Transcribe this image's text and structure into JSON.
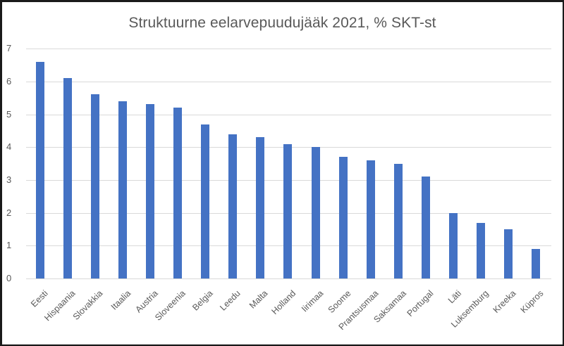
{
  "chart_data": {
    "type": "bar",
    "title": "Struktuurne eelarvepuudujääk 2021, % SKT-st",
    "xlabel": "",
    "ylabel": "",
    "ylim": [
      0,
      7
    ],
    "yticks": [
      0,
      1,
      2,
      3,
      4,
      5,
      6,
      7
    ],
    "grid": true,
    "legend": null,
    "bar_color": "#4472c4",
    "categories": [
      "Eesti",
      "Hispaania",
      "Slovakkia",
      "Itaalia",
      "Austria",
      "Sloveenia",
      "Belgia",
      "Leedu",
      "Malta",
      "Holland",
      "Iirimaa",
      "Soome",
      "Prantsusmaa",
      "Saksamaa",
      "Portugal",
      "Läti",
      "Luksemburg",
      "Kreeka",
      "Küpros"
    ],
    "values": [
      6.6,
      6.1,
      5.6,
      5.4,
      5.3,
      5.2,
      4.7,
      4.4,
      4.3,
      4.1,
      4.0,
      3.7,
      3.6,
      3.5,
      3.1,
      2.0,
      1.7,
      1.5,
      0.9
    ]
  }
}
